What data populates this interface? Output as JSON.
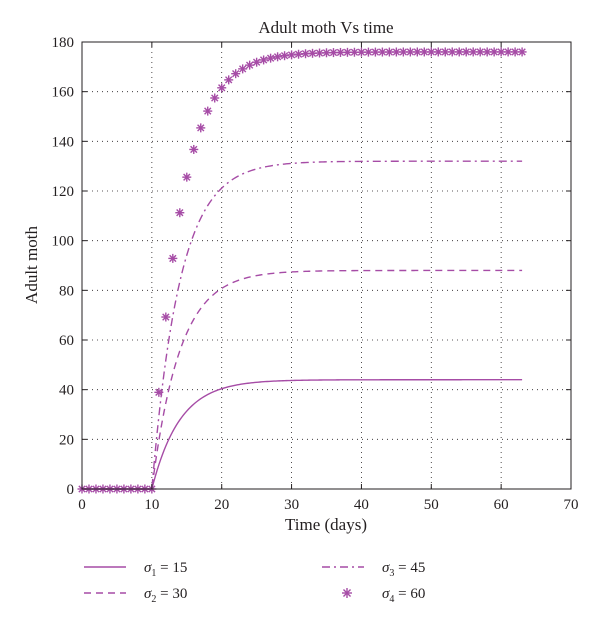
{
  "chart_data": {
    "type": "line",
    "title": "Adult moth Vs time",
    "xlabel": "Time (days)",
    "ylabel": "Adult moth",
    "xlim": [
      0,
      70
    ],
    "ylim": [
      0,
      180
    ],
    "x_ticks": [
      "0",
      "10",
      "20",
      "30",
      "40",
      "50",
      "60",
      "70"
    ],
    "y_ticks": [
      "0",
      "20",
      "40",
      "60",
      "80",
      "100",
      "120",
      "140",
      "160",
      "180"
    ],
    "grid": "dotted",
    "legend_position": "below plot",
    "line_color": "#a64ca6",
    "series": [
      {
        "name": "σ1 = 15",
        "legend_symbol": "σ",
        "legend_sub": "1",
        "legend_value": " = 15",
        "style": "solid",
        "plateau": 44
      },
      {
        "name": "σ2 = 30",
        "legend_symbol": "σ",
        "legend_sub": "2",
        "legend_value": " = 30",
        "style": "dashed",
        "plateau": 88
      },
      {
        "name": "σ3 = 45",
        "legend_symbol": "σ",
        "legend_sub": "3",
        "legend_value": " = 45",
        "style": "dashdot",
        "plateau": 132
      },
      {
        "name": "σ4 = 60",
        "legend_symbol": "σ",
        "legend_sub": "4",
        "legend_value": " = 60",
        "style": "asterisk",
        "plateau": 176
      }
    ],
    "model": {
      "delay_days": 10,
      "rate": 0.25,
      "x_end": 63
    }
  }
}
